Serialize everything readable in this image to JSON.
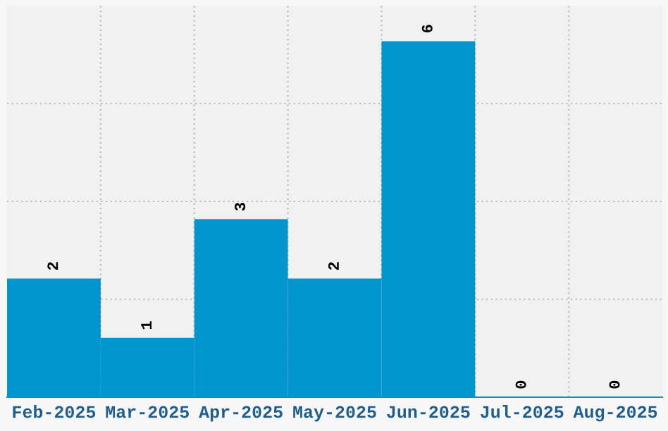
{
  "chart_data": {
    "type": "bar",
    "categories": [
      "Feb-2025",
      "Mar-2025",
      "Apr-2025",
      "May-2025",
      "Jun-2025",
      "Jul-2025",
      "Aug-2025"
    ],
    "values": [
      2,
      1,
      3,
      2,
      6,
      0,
      0
    ],
    "color": "#0095cc",
    "ylim": [
      0,
      6.6
    ],
    "yticks": [
      {
        "value": 1.65,
        "label": null
      },
      {
        "value": 3.3,
        "label": null
      },
      {
        "value": 4.95,
        "label": null
      }
    ],
    "tick_labels": "x",
    "grid": true,
    "data_labels": true
  }
}
